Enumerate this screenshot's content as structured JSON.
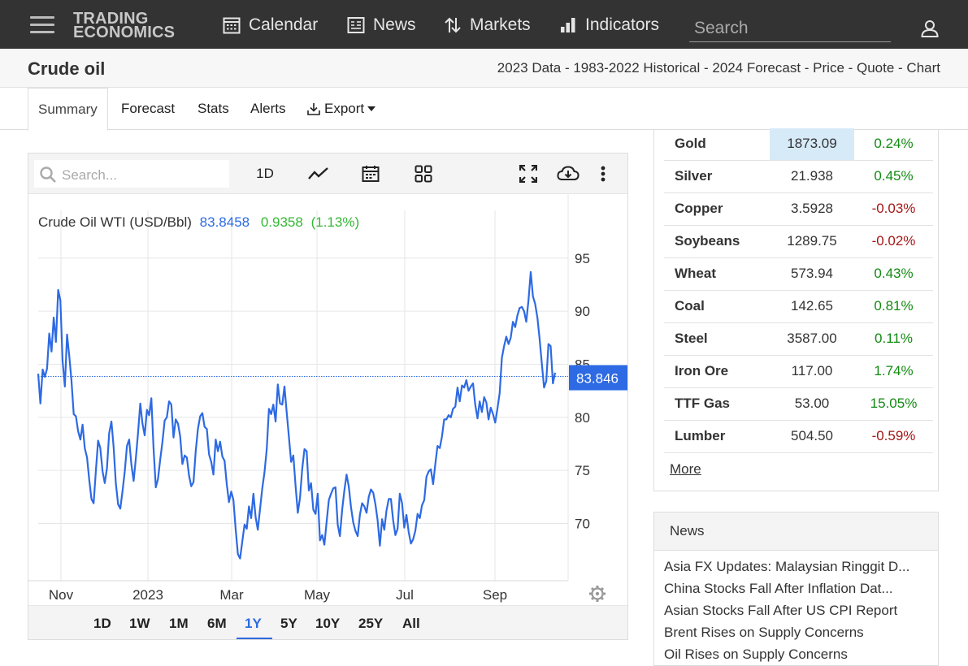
{
  "nav": {
    "logo_line1": "TRADING",
    "logo_line2": "ECONOMICS",
    "items": [
      {
        "label": "Calendar",
        "icon": "calendar-icon"
      },
      {
        "label": "News",
        "icon": "news-icon"
      },
      {
        "label": "Markets",
        "icon": "markets-icon"
      },
      {
        "label": "Indicators",
        "icon": "indicators-icon"
      }
    ],
    "search_placeholder": "Search"
  },
  "title": {
    "text": "Crude oil",
    "crumbs": "2023 Data - 1983-2022 Historical - 2024 Forecast - Price - Quote - Chart"
  },
  "tabs": [
    "Summary",
    "Forecast",
    "Stats",
    "Alerts",
    "Export"
  ],
  "chart_toolbar": {
    "search_placeholder": "Search...",
    "interval": "1D"
  },
  "chart_data": {
    "type": "line",
    "title": "Crude Oil WTI (USD/Bbl)",
    "last_value": "83.8458",
    "change": "0.9358",
    "change_pct": "(1.13%)",
    "price_tag": "83.846",
    "x_tick_labels": [
      "Nov",
      "2023",
      "Mar",
      "May",
      "Jul",
      "Sep"
    ],
    "y_tick_labels": [
      "95",
      "90",
      "85",
      "80",
      "75",
      "70"
    ],
    "ylim": [
      64.6,
      99.5
    ],
    "grid": true,
    "series": [
      {
        "color": "#2d6ae3",
        "values": [
          84.1,
          81.3,
          84.5,
          83.8,
          84.6,
          87.9,
          86.2,
          89.4,
          87.1,
          92.0,
          91.0,
          85.3,
          82.9,
          87.8,
          85.8,
          83.5,
          80.3,
          80.1,
          78.7,
          77.9,
          79.3,
          77.1,
          76.2,
          74.1,
          72.3,
          71.9,
          75.0,
          77.8,
          77.1,
          74.9,
          73.8,
          75.2,
          78.5,
          79.6,
          77.2,
          73.8,
          71.8,
          71.4,
          73.0,
          74.9,
          77.3,
          77.9,
          75.6,
          74.0,
          76.1,
          78.5,
          81.3,
          79.4,
          78.3,
          80.7,
          80.2,
          81.8,
          77.1,
          73.4,
          74.2,
          76.0,
          77.7,
          79.7,
          80.0,
          81.5,
          81.2,
          78.1,
          79.8,
          79.4,
          78.2,
          75.6,
          76.4,
          76.2,
          74.5,
          73.5,
          73.9,
          76.8,
          78.9,
          80.1,
          80.4,
          79.1,
          78.9,
          76.5,
          75.8,
          74.6,
          77.9,
          76.8,
          77.7,
          76.3,
          75.9,
          73.7,
          72.0,
          73.0,
          72.2,
          69.5,
          67.1,
          66.7,
          68.3,
          69.9,
          69.5,
          71.6,
          70.5,
          72.8,
          70.6,
          69.4,
          71.4,
          73.3,
          74.8,
          77.0,
          80.8,
          80.3,
          81.2,
          79.6,
          83.1,
          81.3,
          81.2,
          82.9,
          80.5,
          78.2,
          75.8,
          76.4,
          73.6,
          71.0,
          72.4,
          75.1,
          77.0,
          76.8,
          73.1,
          73.8,
          71.3,
          70.9,
          72.8,
          68.4,
          68.9,
          68.0,
          70.1,
          72.2,
          72.8,
          73.3,
          73.4,
          69.9,
          68.8,
          71.3,
          73.1,
          74.6,
          73.5,
          71.5,
          70.1,
          69.3,
          68.8,
          70.8,
          71.9,
          71.6,
          71.0,
          72.5,
          73.2,
          72.9,
          71.8,
          70.3,
          67.9,
          70.4,
          69.4,
          71.2,
          72.3,
          72.3,
          70.3,
          68.9,
          69.5,
          72.8,
          71.9,
          69.6,
          70.8,
          69.2,
          68.1,
          68.5,
          69.3,
          70.9,
          70.5,
          71.7,
          72.2,
          74.4,
          74.9,
          75.1,
          73.7,
          75.6,
          77.3,
          77.1,
          78.2,
          79.8,
          79.8,
          80.2,
          80.0,
          80.8,
          81.0,
          82.8,
          81.5,
          83.0,
          82.8,
          83.5,
          82.5,
          82.9,
          83.2,
          81.2,
          79.9,
          81.5,
          80.5,
          81.9,
          81.4,
          79.8,
          80.9,
          80.3,
          79.5,
          80.8,
          82.3,
          85.6,
          86.7,
          87.6,
          86.9,
          87.5,
          89.0,
          88.5,
          89.6,
          90.3,
          90.4,
          90.0,
          89.0,
          91.0,
          93.7,
          91.4,
          90.7,
          89.4,
          87.4,
          85.1,
          82.8,
          83.4,
          86.9,
          86.7,
          83.2,
          84.2
        ]
      }
    ]
  },
  "ranges": [
    "1D",
    "1W",
    "1M",
    "6M",
    "1Y",
    "5Y",
    "10Y",
    "25Y",
    "All"
  ],
  "active_range": "1Y",
  "commodities": [
    {
      "name": "Gold",
      "price": "1873.09",
      "change": "0.24%",
      "dir": "pos"
    },
    {
      "name": "Silver",
      "price": "21.938",
      "change": "0.45%",
      "dir": "pos"
    },
    {
      "name": "Copper",
      "price": "3.5928",
      "change": "-0.03%",
      "dir": "neg"
    },
    {
      "name": "Soybeans",
      "price": "1289.75",
      "change": "-0.02%",
      "dir": "neg"
    },
    {
      "name": "Wheat",
      "price": "573.94",
      "change": "0.43%",
      "dir": "pos"
    },
    {
      "name": "Coal",
      "price": "142.65",
      "change": "0.81%",
      "dir": "pos"
    },
    {
      "name": "Steel",
      "price": "3587.00",
      "change": "0.11%",
      "dir": "pos"
    },
    {
      "name": "Iron Ore",
      "price": "117.00",
      "change": "1.74%",
      "dir": "pos"
    },
    {
      "name": "TTF Gas",
      "price": "53.00",
      "change": "15.05%",
      "dir": "pos"
    },
    {
      "name": "Lumber",
      "price": "504.50",
      "change": "-0.59%",
      "dir": "neg"
    }
  ],
  "more_label": "More",
  "news": {
    "heading": "News",
    "items": [
      "Asia FX Updates: Malaysian Ringgit D...",
      "China Stocks Fall After Inflation Dat...",
      "Asian Stocks Fall After US CPI Report",
      "Brent Rises on Supply Concerns",
      "Oil Rises on Supply Concerns"
    ]
  },
  "colors": {
    "nav_bg": "#333333",
    "accent": "#2d6ae3",
    "positive": "#138a13",
    "negative": "#a41717",
    "highlight": "#d6eaf8"
  }
}
